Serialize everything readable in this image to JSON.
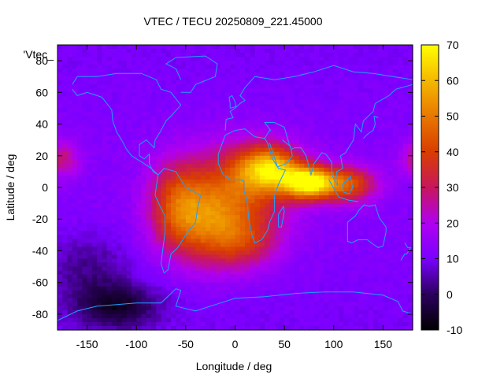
{
  "chart_data": {
    "type": "heatmap",
    "title": "VTEC / TECU 20250809_221.45000",
    "xlabel": "Longitude / deg",
    "ylabel": "Latitude / deg",
    "series_key": "'Vtec_",
    "xlim": [
      -180,
      180
    ],
    "ylim": [
      -90,
      90
    ],
    "x_ticks": [
      -150,
      -100,
      -50,
      0,
      50,
      100,
      150
    ],
    "y_ticks": [
      -80,
      -60,
      -40,
      -20,
      0,
      20,
      40,
      60,
      80
    ],
    "colorbar": {
      "min": -10,
      "max": 70,
      "ticks": [
        -10,
        0,
        10,
        20,
        30,
        40,
        50,
        60,
        70
      ]
    },
    "grid_resolution_deg": [
      5,
      2.5
    ],
    "field_description": "Global vertical total electron content map with equatorial ionization anomaly peaking (~60-70 TECU) over the Indian Ocean / Arabian Sea around 60-90E, 0-15N; elevated values (30-45 TECU) across Africa, the South Atlantic and South America; background 5-15 TECU elsewhere with minima near -5 TECU around high southern latitudes south of the Pacific.",
    "peaks": [
      {
        "lon": 75,
        "lat": 3,
        "value": 66,
        "sigma_lon": 18,
        "sigma_lat": 7
      },
      {
        "lon": 35,
        "lat": 12,
        "value": 52,
        "sigma_lon": 22,
        "sigma_lat": 10
      },
      {
        "lon": 115,
        "lat": 2,
        "value": 40,
        "sigma_lon": 20,
        "sigma_lat": 8
      },
      {
        "lon": 0,
        "lat": -2,
        "value": 36,
        "sigma_lon": 40,
        "sigma_lat": 20
      },
      {
        "lon": -30,
        "lat": -25,
        "value": 34,
        "sigma_lon": 30,
        "sigma_lat": 18
      },
      {
        "lon": -60,
        "lat": -10,
        "value": 30,
        "sigma_lon": 20,
        "sigma_lat": 18
      },
      {
        "lon": 10,
        "lat": -35,
        "value": 26,
        "sigma_lon": 25,
        "sigma_lat": 12
      },
      {
        "lon": -175,
        "lat": 18,
        "value": 26,
        "sigma_lon": 12,
        "sigma_lat": 8
      }
    ],
    "background_value": 10,
    "minima": [
      {
        "lon": -120,
        "lat": -75,
        "value": -6,
        "sigma_lon": 30,
        "sigma_lat": 10
      },
      {
        "lon": -150,
        "lat": -50,
        "value": 2,
        "sigma_lon": 30,
        "sigma_lat": 15
      }
    ]
  }
}
